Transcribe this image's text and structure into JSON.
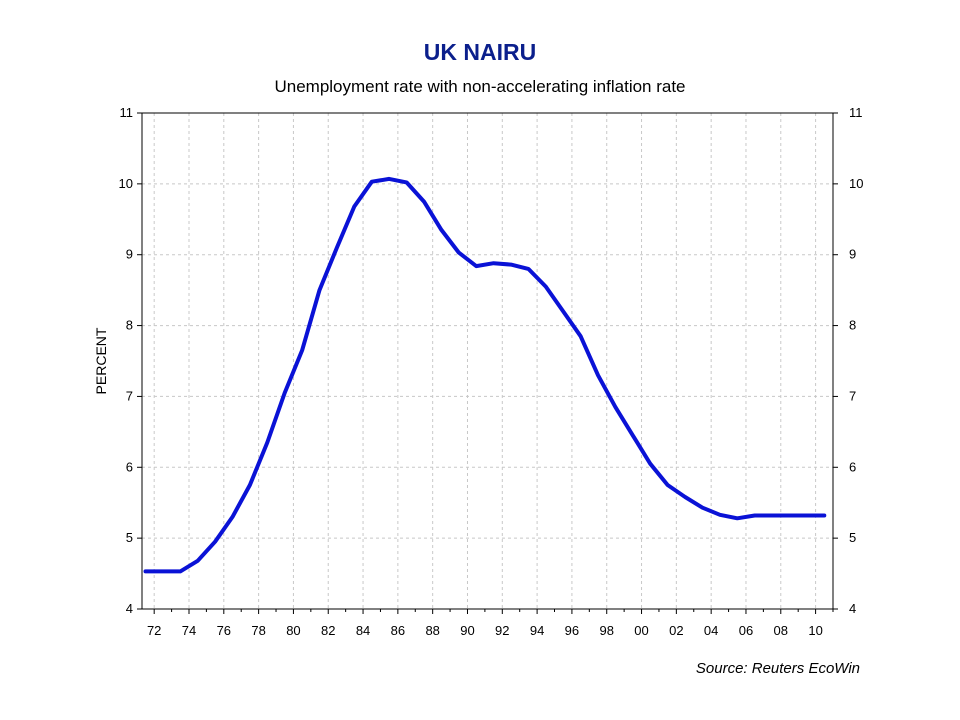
{
  "colors": {
    "title": "#0b1f8c",
    "series": "#0a12d6",
    "grid": "#c8c8c8",
    "axis": "#000000"
  },
  "chart_data": {
    "type": "line",
    "title": "UK NAIRU",
    "subtitle": "Unemployment rate with non-accelerating inflation rate",
    "xlabel": "",
    "ylabel": "PERCENT",
    "source": "Source: Reuters EcoWin",
    "x_tick_labels": [
      "72",
      "74",
      "76",
      "78",
      "80",
      "82",
      "84",
      "86",
      "88",
      "90",
      "92",
      "94",
      "96",
      "98",
      "00",
      "02",
      "04",
      "06",
      "08",
      "10"
    ],
    "y_ticks": [
      4,
      5,
      6,
      7,
      8,
      9,
      10,
      11
    ],
    "ylim": [
      4,
      11
    ],
    "xlim": [
      1971.3,
      2011.0
    ],
    "grid": true,
    "right_axis": true,
    "series": [
      {
        "x": [
          1971.5,
          1972.5,
          1973.5,
          1974.5,
          1975.5,
          1976.5,
          1977.5,
          1978.5,
          1979.5,
          1980.5,
          1981.5,
          1982.5,
          1983.5,
          1984.5,
          1985.5,
          1986.5,
          1987.5,
          1988.5,
          1989.5,
          1990.5,
          1991.5,
          1992.5,
          1993.5,
          1994.5,
          1995.5,
          1996.5,
          1997.5,
          1998.5,
          1999.5,
          2000.5,
          2001.5,
          2002.5,
          2003.5,
          2004.5,
          2005.5,
          2006.5,
          2007.5,
          2008.5,
          2009.5,
          2010.5
        ],
        "values": [
          4.53,
          4.53,
          4.53,
          4.68,
          4.95,
          5.3,
          5.75,
          6.35,
          7.05,
          7.65,
          8.5,
          9.1,
          9.68,
          10.03,
          10.07,
          10.02,
          9.75,
          9.35,
          9.03,
          8.84,
          8.88,
          8.86,
          8.8,
          8.55,
          8.2,
          7.85,
          7.3,
          6.85,
          6.45,
          6.05,
          5.75,
          5.58,
          5.43,
          5.33,
          5.28,
          5.32,
          5.32,
          5.32,
          5.32,
          5.32
        ]
      }
    ]
  }
}
